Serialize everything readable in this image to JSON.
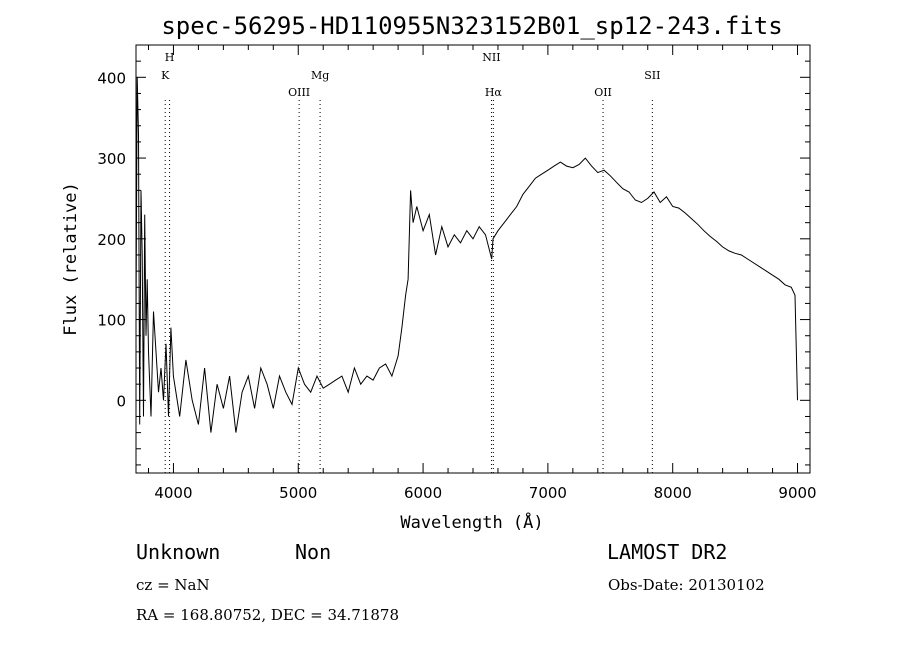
{
  "chart_data": {
    "type": "line",
    "title": "spec-56295-HD110955N323152B01_sp12-243.fits",
    "xlabel": "Wavelength (Å)",
    "ylabel": "Flux (relative)",
    "xlim": [
      3700,
      9100
    ],
    "ylim": [
      -90,
      440
    ],
    "x_ticks": [
      4000,
      5000,
      6000,
      7000,
      8000,
      9000
    ],
    "x_tick_labels": [
      "4000",
      "5000",
      "6000",
      "7000",
      "8000",
      "9000"
    ],
    "y_ticks": [
      0,
      100,
      200,
      300,
      400
    ],
    "y_tick_labels": [
      "0",
      "100",
      "200",
      "300",
      "400"
    ],
    "grid": false,
    "series": [
      {
        "color": "#000000",
        "x": [
          3700,
          3710,
          3720,
          3730,
          3740,
          3750,
          3760,
          3770,
          3780,
          3790,
          3800,
          3820,
          3840,
          3860,
          3880,
          3900,
          3920,
          3940,
          3960,
          3980,
          4000,
          4050,
          4100,
          4150,
          4200,
          4250,
          4300,
          4350,
          4400,
          4450,
          4500,
          4550,
          4600,
          4650,
          4700,
          4750,
          4800,
          4850,
          4900,
          4950,
          5000,
          5050,
          5100,
          5150,
          5200,
          5250,
          5300,
          5350,
          5400,
          5450,
          5500,
          5550,
          5600,
          5650,
          5700,
          5750,
          5800,
          5830,
          5860,
          5880,
          5900,
          5920,
          5950,
          6000,
          6050,
          6100,
          6150,
          6200,
          6250,
          6300,
          6350,
          6400,
          6450,
          6500,
          6550,
          6560,
          6600,
          6650,
          6700,
          6750,
          6800,
          6850,
          6900,
          6950,
          7000,
          7050,
          7100,
          7150,
          7200,
          7250,
          7300,
          7350,
          7400,
          7450,
          7500,
          7550,
          7600,
          7650,
          7700,
          7750,
          7800,
          7850,
          7900,
          7950,
          8000,
          8050,
          8100,
          8150,
          8200,
          8250,
          8300,
          8350,
          8400,
          8450,
          8500,
          8550,
          8600,
          8650,
          8700,
          8750,
          8800,
          8850,
          8900,
          8950,
          8980,
          9000
        ],
        "y": [
          100,
          400,
          330,
          -30,
          260,
          180,
          -20,
          230,
          80,
          150,
          60,
          -20,
          110,
          60,
          10,
          40,
          0,
          70,
          -20,
          90,
          30,
          -20,
          50,
          0,
          -30,
          40,
          -40,
          20,
          -10,
          30,
          -40,
          10,
          30,
          -10,
          40,
          20,
          -10,
          30,
          10,
          -5,
          40,
          20,
          10,
          30,
          15,
          20,
          25,
          30,
          10,
          40,
          20,
          30,
          25,
          40,
          45,
          30,
          55,
          90,
          130,
          150,
          260,
          220,
          240,
          210,
          230,
          180,
          215,
          190,
          205,
          195,
          210,
          200,
          215,
          205,
          175,
          200,
          210,
          220,
          230,
          240,
          255,
          265,
          275,
          280,
          285,
          290,
          295,
          290,
          288,
          292,
          300,
          290,
          282,
          285,
          278,
          270,
          262,
          258,
          248,
          245,
          250,
          258,
          245,
          252,
          240,
          238,
          232,
          225,
          218,
          210,
          203,
          197,
          190,
          185,
          182,
          180,
          175,
          170,
          165,
          160,
          155,
          150,
          143,
          140,
          130,
          0
        ]
      }
    ],
    "line_markers": [
      {
        "label": "K",
        "x": 3934,
        "row": 2
      },
      {
        "label": "H",
        "x": 3969,
        "row": 1
      },
      {
        "label": "OIII",
        "x": 5007,
        "row": 3
      },
      {
        "label": "Mg",
        "x": 5175,
        "row": 2
      },
      {
        "label": "NII",
        "x": 6548,
        "row": 1
      },
      {
        "label": "Hα",
        "x": 6563,
        "row": 3
      },
      {
        "label": "OII",
        "x": 7442,
        "row": 3
      },
      {
        "label": "SII",
        "x": 7837,
        "row": 2
      }
    ]
  },
  "footer": {
    "object_class": "Unknown",
    "subclass": "Non",
    "survey": "LAMOST DR2",
    "redshift": "cz = NaN",
    "obs_date": "Obs-Date: 20130102",
    "coords": "RA = 168.80752, DEC =  34.71878"
  }
}
